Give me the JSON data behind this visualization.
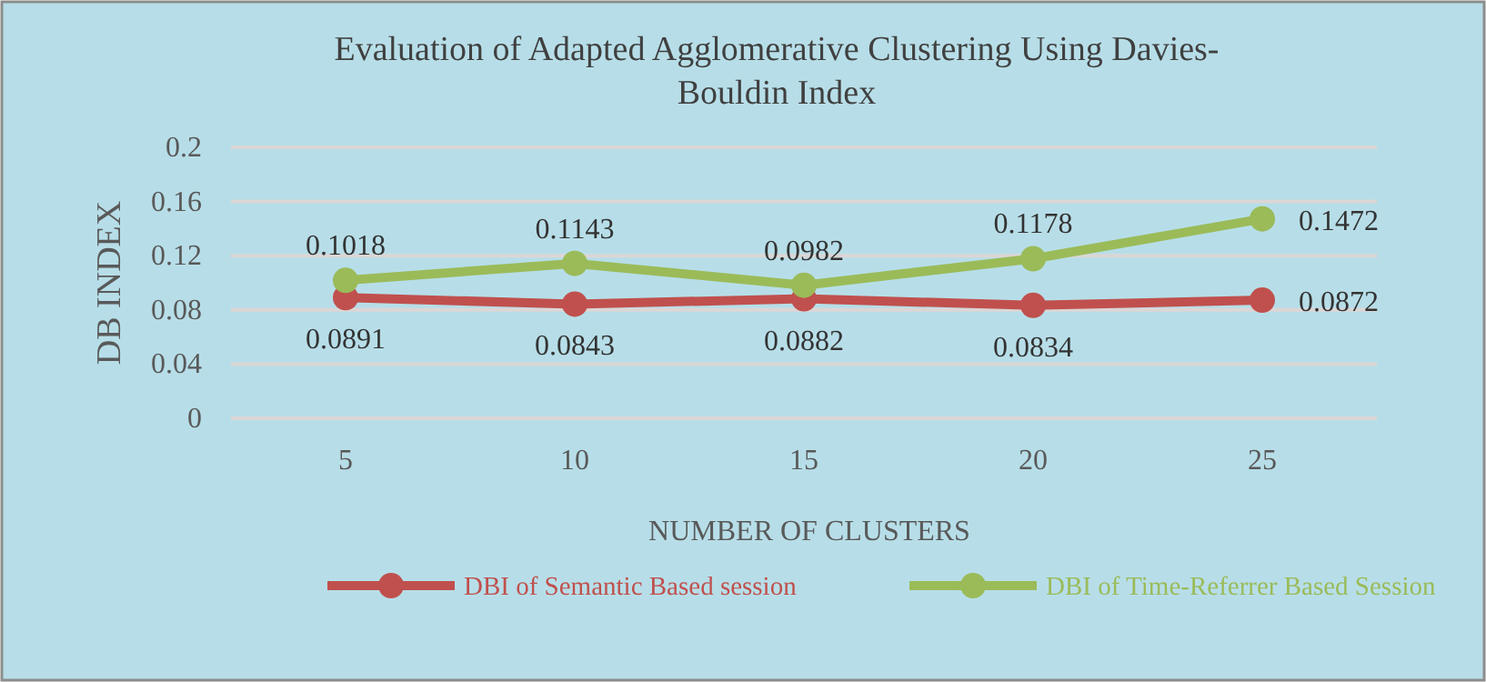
{
  "chart_data": {
    "type": "line",
    "title": "Evaluation of  Adapted Agglomerative Clustering Using Davies-Bouldin Index",
    "xlabel": "NUMBER OF CLUSTERS",
    "ylabel": "DB  INDEX",
    "categories": [
      "5",
      "10",
      "15",
      "20",
      "25"
    ],
    "series": [
      {
        "name": "DBI of Semantic Based session",
        "color": "#c0504d",
        "values": [
          0.0891,
          0.0843,
          0.0882,
          0.0834,
          0.0872
        ]
      },
      {
        "name": "DBI of Time-Referrer Based Session",
        "color": "#9bbb59",
        "values": [
          0.1018,
          0.1143,
          0.0982,
          0.1178,
          0.1472
        ]
      }
    ],
    "ylim": [
      0,
      0.2
    ],
    "yticks": [
      0,
      0.04,
      0.08,
      0.12,
      0.16,
      0.2
    ],
    "grid": "y",
    "legend": "bottom",
    "marker": "circle",
    "data_labels": true
  }
}
